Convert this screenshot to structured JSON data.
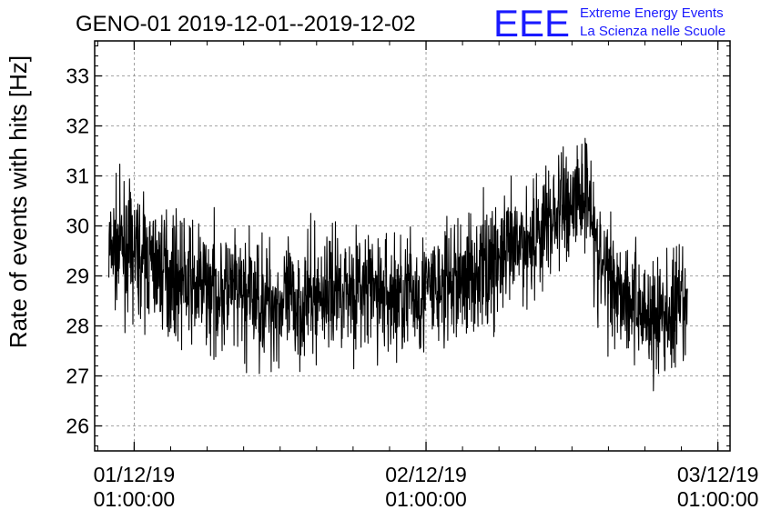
{
  "chart_data": {
    "type": "line",
    "title": "GENO-01 2019-12-01--2019-12-02",
    "ylabel": "Rate of events with hits [Hz]",
    "xlabel": "",
    "logo": {
      "text": "EEE",
      "line1": "Extreme Energy Events",
      "line2": "La Scienza nelle Scuole",
      "color": "#1a1aff"
    },
    "ylim": [
      25.5,
      33.7
    ],
    "yticks": [
      26,
      27,
      28,
      29,
      30,
      31,
      32,
      33
    ],
    "xlim": [
      "2019-11-30 21:45",
      "2019-12-03 02:00"
    ],
    "xticks": [
      {
        "x": "2019-12-01 01:00",
        "date": "01/12/19",
        "time": "01:00:00"
      },
      {
        "x": "2019-12-02 01:00",
        "date": "02/12/19",
        "time": "01:00:00"
      },
      {
        "x": "2019-12-03 01:00",
        "date": "03/12/19",
        "time": "01:00:00"
      }
    ],
    "grid": true,
    "line_color": "#000000",
    "series": [
      {
        "x_start": "2019-11-30 22:55",
        "x_end": "2019-12-02 22:30",
        "envelope_points": [
          {
            "x": "2019-11-30 23:00",
            "mean": 29.5,
            "spread": 1.4
          },
          {
            "x": "2019-12-01 00:00",
            "mean": 29.6,
            "spread": 1.5
          },
          {
            "x": "2019-12-01 02:00",
            "mean": 29.3,
            "spread": 1.5
          },
          {
            "x": "2019-12-01 06:00",
            "mean": 28.8,
            "spread": 1.5
          },
          {
            "x": "2019-12-01 10:00",
            "mean": 28.6,
            "spread": 1.6
          },
          {
            "x": "2019-12-01 14:00",
            "mean": 28.4,
            "spread": 1.6
          },
          {
            "x": "2019-12-01 18:00",
            "mean": 28.8,
            "spread": 1.5
          },
          {
            "x": "2019-12-01 22:00",
            "mean": 28.6,
            "spread": 1.6
          },
          {
            "x": "2019-12-02 02:00",
            "mean": 28.7,
            "spread": 1.6
          },
          {
            "x": "2019-12-02 06:00",
            "mean": 29.2,
            "spread": 1.6
          },
          {
            "x": "2019-12-02 09:00",
            "mean": 29.6,
            "spread": 1.5
          },
          {
            "x": "2019-12-02 12:00",
            "mean": 30.3,
            "spread": 1.6
          },
          {
            "x": "2019-12-02 14:30",
            "mean": 30.8,
            "spread": 1.6
          },
          {
            "x": "2019-12-02 15:00",
            "mean": 29.3,
            "spread": 1.6
          },
          {
            "x": "2019-12-02 18:00",
            "mean": 28.5,
            "spread": 1.5
          },
          {
            "x": "2019-12-02 20:00",
            "mean": 28.1,
            "spread": 1.7
          },
          {
            "x": "2019-12-02 22:30",
            "mean": 28.4,
            "spread": 1.5
          }
        ]
      }
    ]
  }
}
